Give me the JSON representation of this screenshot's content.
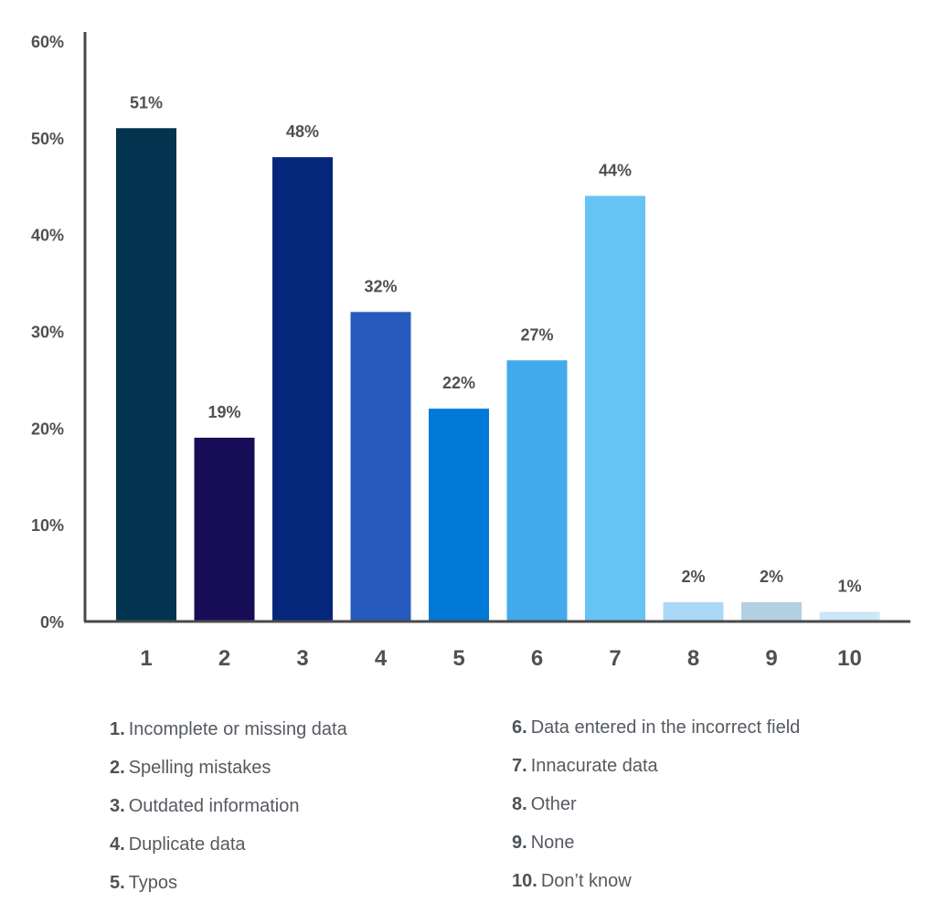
{
  "chart_data": {
    "type": "bar",
    "categories": [
      "1",
      "2",
      "3",
      "4",
      "5",
      "6",
      "7",
      "8",
      "9",
      "10"
    ],
    "values": [
      51,
      19,
      48,
      32,
      22,
      27,
      44,
      2,
      2,
      1
    ],
    "value_labels": [
      "51%",
      "19%",
      "48%",
      "32%",
      "22%",
      "27%",
      "44%",
      "2%",
      "2%",
      "1%"
    ],
    "bar_colors": [
      "#03344f",
      "#170d57",
      "#04277b",
      "#265bbd",
      "#0079d6",
      "#42a9ec",
      "#66c3f4",
      "#aad9f7",
      "#b3d0e3",
      "#cce7f6"
    ],
    "ylim": [
      0,
      60
    ],
    "yticks": [
      0,
      10,
      20,
      30,
      40,
      50,
      60
    ],
    "ytick_labels": [
      "0%",
      "10%",
      "20%",
      "30%",
      "40%",
      "50%",
      "60%"
    ],
    "title": "",
    "xlabel": "",
    "ylabel": "",
    "grid": false,
    "legend": {
      "left": [
        {
          "num": "1.",
          "text": "Incomplete or missing data"
        },
        {
          "num": "2.",
          "text": "Spelling mistakes"
        },
        {
          "num": "3.",
          "text": "Outdated information"
        },
        {
          "num": "4.",
          "text": "Duplicate data"
        },
        {
          "num": "5.",
          "text": "Typos"
        }
      ],
      "right": [
        {
          "num": "6.",
          "text": "Data entered in the incorrect field"
        },
        {
          "num": "7.",
          "text": "Innacurate data"
        },
        {
          "num": "8.",
          "text": "Other"
        },
        {
          "num": "9.",
          "text": "None"
        },
        {
          "num": "10.",
          "text": "Don’t know"
        }
      ]
    }
  }
}
